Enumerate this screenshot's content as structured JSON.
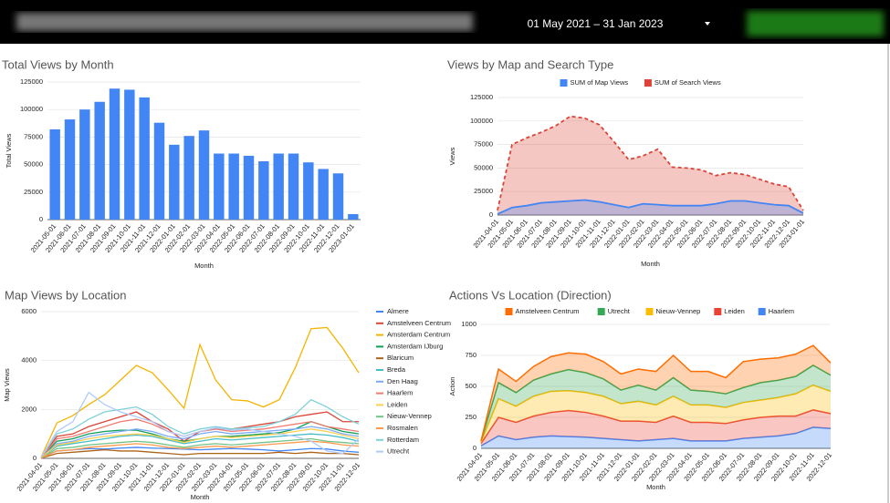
{
  "header": {
    "date_range": "01 May 2021 – 31 Jan 2023"
  },
  "chart_data": [
    {
      "type": "bar",
      "title": "Total Views by Month",
      "x_label": "Month",
      "y_label": "Total Views",
      "categories": [
        "2021-05-01",
        "2021-06-01",
        "2021-07-01",
        "2021-08-01",
        "2021-09-01",
        "2021-10-01",
        "2021-11-01",
        "2021-12-01",
        "2022-01-01",
        "2022-02-01",
        "2022-03-01",
        "2022-04-01",
        "2022-05-01",
        "2022-06-01",
        "2022-07-01",
        "2022-08-01",
        "2022-09-01",
        "2022-10-01",
        "2022-11-01",
        "2022-12-01",
        "2023-01-01"
      ],
      "values": [
        82000,
        91000,
        100000,
        107000,
        119000,
        118000,
        111000,
        88000,
        68000,
        76000,
        81000,
        60000,
        60000,
        58000,
        53000,
        60000,
        60000,
        52000,
        46000,
        42000,
        5000
      ],
      "color": "#4285f4",
      "ylim": [
        0,
        125000
      ],
      "yticks": [
        0,
        25000,
        50000,
        75000,
        100000,
        125000
      ],
      "grid": true
    },
    {
      "type": "area",
      "title": "Views by Map and Search Type",
      "x_label": "Month",
      "y_label": "Views",
      "legend": "top",
      "categories": [
        "2021-04-01",
        "2021-05-01",
        "2021-06-01",
        "2021-07-01",
        "2021-08-01",
        "2021-09-01",
        "2021-10-01",
        "2021-11-01",
        "2021-12-01",
        "2022-01-01",
        "2022-02-01",
        "2022-03-01",
        "2022-04-01",
        "2022-05-01",
        "2022-06-01",
        "2022-07-01",
        "2022-08-01",
        "2022-09-01",
        "2022-10-01",
        "2022-11-01",
        "2022-12-01",
        "2023-01-01"
      ],
      "series": [
        {
          "name": "SUM of Map Views",
          "color": "#4285f4",
          "line_style": "solid",
          "values": [
            1000,
            8000,
            10000,
            13000,
            14000,
            15000,
            16000,
            14000,
            11000,
            8000,
            12000,
            11000,
            10000,
            10000,
            10000,
            12000,
            15000,
            15000,
            13000,
            11000,
            10000,
            2000
          ]
        },
        {
          "name": "SUM of Search Views",
          "color": "#db4437",
          "line_style": "dashed",
          "values": [
            5000,
            75000,
            82000,
            88000,
            95000,
            105000,
            103000,
            96000,
            78000,
            59000,
            63000,
            70000,
            51000,
            50000,
            48000,
            42000,
            45000,
            43000,
            38000,
            33000,
            30000,
            5000
          ]
        }
      ],
      "ylim": [
        0,
        125000
      ],
      "yticks": [
        0,
        25000,
        50000,
        75000,
        100000,
        125000
      ],
      "grid": true
    },
    {
      "type": "line",
      "title": "Map Views by Location",
      "x_label": "Month",
      "y_label": "Map Views",
      "legend": "right",
      "categories": [
        "2021-04-01",
        "2021-05-01",
        "2021-06-01",
        "2021-07-01",
        "2021-08-01",
        "2021-09-01",
        "2021-10-01",
        "2021-11-01",
        "2021-12-01",
        "2022-01-01",
        "2022-02-01",
        "2022-03-01",
        "2022-04-01",
        "2022-05-01",
        "2022-06-01",
        "2022-07-01",
        "2022-08-01",
        "2022-09-01",
        "2022-10-01",
        "2022-11-01",
        "2022-12-01"
      ],
      "series": [
        {
          "name": "Almere",
          "color": "#4285f4",
          "values": [
            30,
            300,
            350,
            400,
            380,
            420,
            450,
            420,
            400,
            380,
            350,
            380,
            400,
            380,
            350,
            300,
            350,
            400,
            380,
            300,
            250
          ]
        },
        {
          "name": "Amstelveen Centrum",
          "color": "#db4437",
          "values": [
            40,
            900,
            1000,
            1300,
            1500,
            1700,
            1900,
            1500,
            1200,
            700,
            1100,
            1200,
            1200,
            1300,
            1400,
            1500,
            1700,
            1800,
            1900,
            1500,
            1500
          ]
        },
        {
          "name": "Amsterdam Centrum",
          "color": "#f4b400",
          "values": [
            50,
            1450,
            1750,
            2200,
            2600,
            3200,
            3800,
            3500,
            2800,
            2050,
            4650,
            3200,
            2400,
            2350,
            2100,
            2400,
            3700,
            5300,
            5350,
            4500,
            3500
          ]
        },
        {
          "name": "Amsterdam IJburg",
          "color": "#0f9d58",
          "values": [
            30,
            700,
            800,
            1000,
            1100,
            1150,
            1150,
            1000,
            800,
            700,
            800,
            900,
            900,
            950,
            1000,
            1050,
            1200,
            1500,
            1300,
            1100,
            1000
          ]
        },
        {
          "name": "Blaricum",
          "color": "#ab6319",
          "values": [
            10,
            200,
            250,
            300,
            350,
            300,
            300,
            250,
            200,
            150,
            200,
            200,
            200,
            200,
            200,
            250,
            200,
            250,
            200,
            200,
            150
          ]
        },
        {
          "name": "Breda",
          "color": "#46bdc6",
          "values": [
            20,
            500,
            600,
            700,
            800,
            900,
            950,
            900,
            750,
            600,
            700,
            800,
            750,
            800,
            850,
            900,
            950,
            1000,
            950,
            850,
            700
          ]
        },
        {
          "name": "Den Haag",
          "color": "#7baaf7",
          "values": [
            30,
            600,
            700,
            900,
            1000,
            1100,
            1200,
            1100,
            900,
            800,
            1000,
            1100,
            1000,
            1050,
            1100,
            1150,
            1200,
            1300,
            1200,
            1000,
            900
          ]
        },
        {
          "name": "Haarlem",
          "color": "#f07b72",
          "values": [
            30,
            800,
            900,
            1100,
            1300,
            1500,
            1600,
            1400,
            1100,
            900,
            1100,
            1200,
            1100,
            1150,
            1200,
            1300,
            1400,
            1500,
            1300,
            1200,
            1100
          ]
        },
        {
          "name": "Leiden",
          "color": "#fcd04f",
          "values": [
            20,
            550,
            650,
            800,
            900,
            950,
            1000,
            950,
            800,
            650,
            800,
            900,
            850,
            900,
            950,
            1000,
            1100,
            1200,
            1100,
            950,
            800
          ]
        },
        {
          "name": "Nieuw-Vennep",
          "color": "#71c287",
          "values": [
            10,
            400,
            450,
            550,
            600,
            650,
            700,
            650,
            550,
            450,
            550,
            600,
            550,
            600,
            650,
            700,
            750,
            800,
            700,
            650,
            600
          ]
        },
        {
          "name": "Rosmalen",
          "color": "#ff994d",
          "values": [
            10,
            300,
            350,
            450,
            500,
            550,
            600,
            550,
            450,
            400,
            450,
            500,
            450,
            500,
            550,
            600,
            650,
            700,
            650,
            550,
            500
          ]
        },
        {
          "name": "Rotterdam",
          "color": "#7ed1d7",
          "values": [
            40,
            1000,
            1200,
            1600,
            1900,
            2000,
            2100,
            1800,
            1300,
            1000,
            1200,
            1300,
            1200,
            1250,
            1300,
            1500,
            1800,
            2400,
            2100,
            1700,
            1400
          ]
        },
        {
          "name": "Utrecht",
          "color": "#aecbfa",
          "values": [
            50,
            1100,
            1500,
            2700,
            2200,
            1900,
            1700,
            1500,
            1100,
            900,
            1100,
            1250,
            1150,
            1200,
            1100,
            1000,
            900,
            700,
            300,
            200,
            800
          ]
        }
      ],
      "ylim": [
        0,
        6000
      ],
      "yticks": [
        0,
        2000,
        4000,
        6000
      ],
      "grid": true
    },
    {
      "type": "stacked_area",
      "title": "Actions Vs Location (Direction)",
      "x_label": "Month",
      "y_label": "Action",
      "legend": "top",
      "categories": [
        "2021-04-01",
        "2021-05-01",
        "2021-06-01",
        "2021-07-01",
        "2021-08-01",
        "2021-09-01",
        "2021-10-01",
        "2021-11-01",
        "2021-12-01",
        "2022-01-01",
        "2022-02-01",
        "2022-03-01",
        "2022-04-01",
        "2022-05-01",
        "2022-06-01",
        "2022-07-01",
        "2022-08-01",
        "2022-09-01",
        "2022-10-01",
        "2022-11-01",
        "2022-12-01"
      ],
      "series": [
        {
          "name": "Amstelveen Centrum",
          "color": "#ff6d01",
          "values": [
            0,
            110,
            90,
            110,
            140,
            135,
            150,
            140,
            130,
            130,
            150,
            180,
            150,
            160,
            130,
            210,
            190,
            180,
            180,
            160,
            100
          ]
        },
        {
          "name": "Utrecht",
          "color": "#34a853",
          "values": [
            10,
            130,
            110,
            130,
            140,
            170,
            160,
            140,
            110,
            130,
            120,
            150,
            120,
            110,
            110,
            120,
            140,
            140,
            140,
            160,
            130
          ]
        },
        {
          "name": "Nieuw-Vennep",
          "color": "#fbbc04",
          "values": [
            10,
            150,
            130,
            160,
            170,
            160,
            160,
            160,
            140,
            160,
            140,
            160,
            140,
            140,
            130,
            140,
            140,
            150,
            180,
            200,
            180
          ]
        },
        {
          "name": "Leiden",
          "color": "#ea4335",
          "values": [
            20,
            150,
            140,
            170,
            190,
            210,
            200,
            180,
            150,
            160,
            140,
            180,
            150,
            150,
            140,
            150,
            160,
            160,
            140,
            140,
            120
          ]
        },
        {
          "name": "Haarlem",
          "color": "#4285f4",
          "values": [
            20,
            100,
            70,
            90,
            100,
            95,
            90,
            80,
            70,
            60,
            70,
            80,
            60,
            60,
            60,
            80,
            90,
            100,
            120,
            170,
            160
          ]
        }
      ],
      "ylim": [
        0,
        1000
      ],
      "yticks": [
        0,
        250,
        500,
        750,
        1000
      ],
      "grid": true
    }
  ]
}
